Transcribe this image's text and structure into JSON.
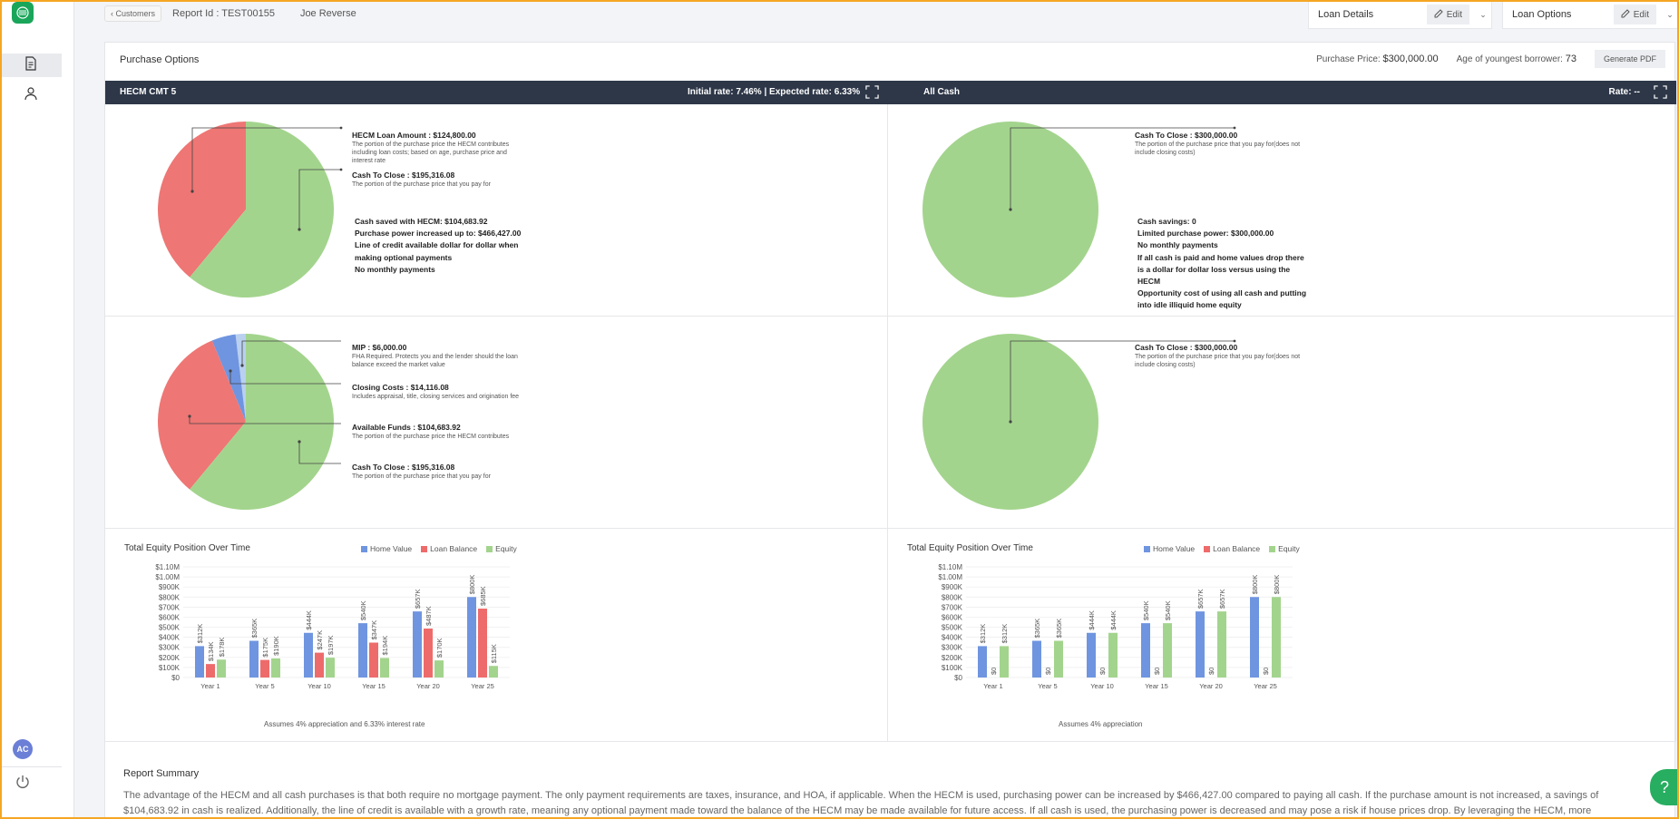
{
  "topbar": {
    "back_label": "Customers",
    "report_id": "Report Id : TEST00155",
    "customer_name": "Joe Reverse",
    "loan_details": "Loan Details",
    "loan_options": "Loan Options",
    "edit_label": "Edit"
  },
  "sidebar": {
    "avatar_initials": "AC"
  },
  "panel": {
    "title": "Purchase Options",
    "purchase_price_label": "Purchase Price:",
    "purchase_price_value": "$300,000.00",
    "age_label": "Age of youngest borrower:",
    "age_value": "73",
    "generate_pdf": "Generate PDF"
  },
  "left": {
    "name": "HECM CMT 5",
    "rates": "Initial rate: 7.46% | Expected rate: 6.33%",
    "pie1": {
      "slices": [
        {
          "label": "HECM Loan Amount",
          "value": 124800,
          "color": "#ee7674"
        },
        {
          "label": "Cash To Close",
          "value": 195316.08,
          "color": "#a3d48d"
        }
      ],
      "ann1_title": "HECM Loan Amount : $124,800.00",
      "ann1_desc": "The portion of the purchase price the HECM contributes including loan costs; based on age, purchase price and interest rate",
      "ann2_title": "Cash To Close : $195,316.08",
      "ann2_desc": "The portion of the purchase price that you pay for",
      "notes": [
        "Cash saved with HECM: $104,683.92",
        "Purchase power increased up to: $466,427.00",
        "Line of credit available dollar for dollar when making optional payments",
        "No monthly payments"
      ]
    },
    "pie2": {
      "slices": [
        {
          "label": "MIP",
          "value": 6000,
          "color": "#b9d0ef"
        },
        {
          "label": "Closing Costs",
          "value": 14116.08,
          "color": "#6f95e0"
        },
        {
          "label": "Available Funds",
          "value": 104683.92,
          "color": "#ee7674"
        },
        {
          "label": "Cash To Close",
          "value": 195316.08,
          "color": "#a3d48d"
        }
      ],
      "ann1_title": "MIP : $6,000.00",
      "ann1_desc": "FHA Required. Protects you and the lender should the loan balance exceed the market value",
      "ann2_title": "Closing Costs : $14,116.08",
      "ann2_desc": "Includes appraisal, title, closing services and origination fee",
      "ann3_title": "Available Funds : $104,683.92",
      "ann3_desc": "The portion of the purchase price the HECM contributes",
      "ann4_title": "Cash To Close : $195,316.08",
      "ann4_desc": "The portion of the purchase price that you pay for"
    },
    "chart_title": "Total Equity Position Over Time",
    "chart_foot": "Assumes 4% appreciation and 6.33% interest rate"
  },
  "right": {
    "name": "All Cash",
    "rate": "Rate: --",
    "pie1": {
      "ann_title": "Cash To Close : $300,000.00",
      "ann_desc": "The portion of the purchase price that you pay for(does not include closing costs)",
      "notes": [
        "Cash savings: 0",
        "Limited purchase power: $300,000.00",
        "No monthly payments",
        "If all cash is paid and home values drop there is a dollar for dollar loss versus using the HECM",
        "Opportunity cost of using all cash and putting into idle illiquid home equity"
      ]
    },
    "pie2": {
      "ann_title": "Cash To Close : $300,000.00",
      "ann_desc": "The portion of the purchase price that you pay for(does not include closing costs)"
    },
    "chart_title": "Total Equity Position Over Time",
    "chart_foot": "Assumes 4% appreciation"
  },
  "summary": {
    "title": "Report Summary",
    "text": "The advantage of the HECM and all cash purchases is that both require no mortgage payment. The only payment requirements are taxes, insurance, and HOA, if applicable. When the HECM is used, purchasing power can be increased by $466,427.00 compared to paying all cash. If the purchase amount is not increased, a savings of $104,683.92 in cash is realized. Additionally, the line of credit is available with a growth rate, meaning any optional payment made toward the balance of the HECM may be made available for future access. If all cash is used, the purchasing power is decreased and may pose a risk if house prices drop. By leveraging the HECM, more"
  },
  "chart_data": [
    {
      "type": "bar",
      "title": "Total Equity Position Over Time",
      "categories": [
        "Year 1",
        "Year 5",
        "Year 10",
        "Year 15",
        "Year 20",
        "Year 25"
      ],
      "series": [
        {
          "name": "Home Value",
          "color": "#6f95e0",
          "values": [
            312000,
            365000,
            444000,
            540000,
            657000,
            800000
          ],
          "labels": [
            "$312K",
            "$365K",
            "$444K",
            "$540K",
            "$657K",
            "$800K"
          ]
        },
        {
          "name": "Loan Balance",
          "color": "#ee6b6b",
          "values": [
            134000,
            175000,
            247000,
            347000,
            487000,
            685000
          ],
          "labels": [
            "$134K",
            "$175K",
            "$247K",
            "$347K",
            "$487K",
            "$685K"
          ]
        },
        {
          "name": "Equity",
          "color": "#a3d48d",
          "values": [
            178000,
            190000,
            197000,
            194000,
            170000,
            115000
          ],
          "labels": [
            "$178K",
            "$190K",
            "$197K",
            "$194K",
            "$170K",
            "$115K"
          ]
        }
      ],
      "ylim": [
        0,
        1100000
      ],
      "yticks": [
        "$0",
        "$100K",
        "$200K",
        "$300K",
        "$400K",
        "$500K",
        "$600K",
        "$700K",
        "$800K",
        "$900K",
        "$1.00M",
        "$1.10M"
      ],
      "legend": "top"
    },
    {
      "type": "bar",
      "title": "Total Equity Position Over Time",
      "categories": [
        "Year 1",
        "Year 5",
        "Year 10",
        "Year 15",
        "Year 20",
        "Year 25"
      ],
      "series": [
        {
          "name": "Home Value",
          "color": "#6f95e0",
          "values": [
            312000,
            365000,
            444000,
            540000,
            657000,
            800000
          ],
          "labels": [
            "$312K",
            "$365K",
            "$444K",
            "$540K",
            "$657K",
            "$800K"
          ]
        },
        {
          "name": "Loan Balance",
          "color": "#ee6b6b",
          "values": [
            0,
            0,
            0,
            0,
            0,
            0
          ],
          "labels": [
            "$0",
            "$0",
            "$0",
            "$0",
            "$0",
            "$0"
          ]
        },
        {
          "name": "Equity",
          "color": "#a3d48d",
          "values": [
            312000,
            365000,
            444000,
            540000,
            657000,
            800000
          ],
          "labels": [
            "$312K",
            "$365K",
            "$444K",
            "$540K",
            "$657K",
            "$800K"
          ]
        }
      ],
      "ylim": [
        0,
        1100000
      ],
      "yticks": [
        "$0",
        "$100K",
        "$200K",
        "$300K",
        "$400K",
        "$500K",
        "$600K",
        "$700K",
        "$800K",
        "$900K",
        "$1.00M",
        "$1.10M"
      ],
      "legend": "top"
    }
  ]
}
